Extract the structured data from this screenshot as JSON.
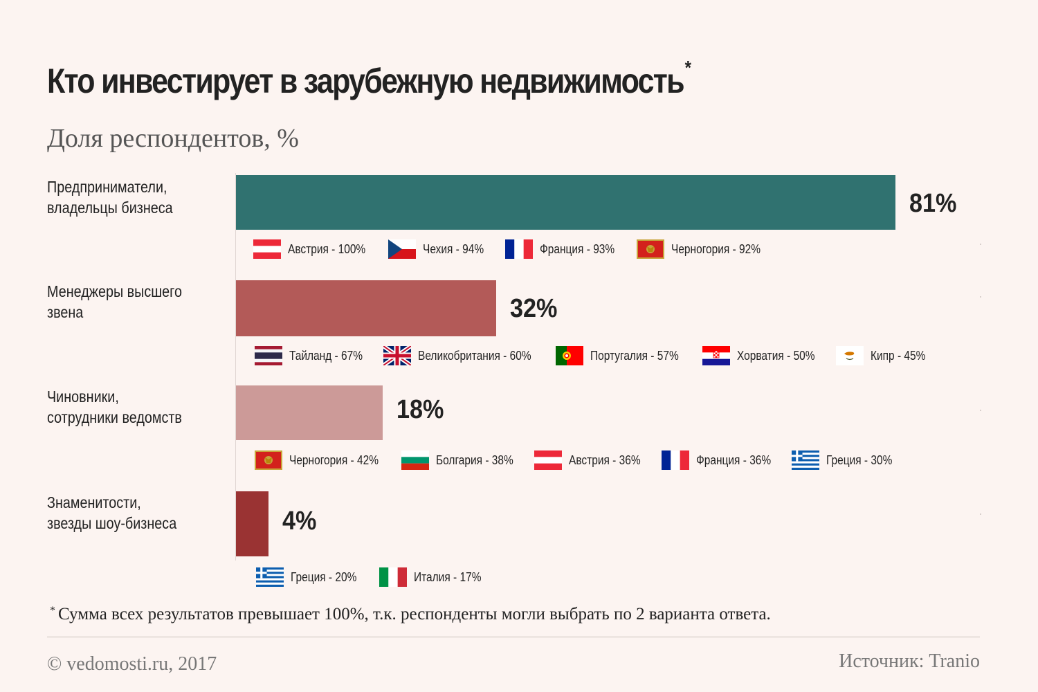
{
  "header": {
    "title": "Кто инвестирует в зарубежную недвижимость",
    "title_asterisk": "*",
    "subtitle": "Доля респондентов, %"
  },
  "chart_data": {
    "type": "bar",
    "orientation": "horizontal",
    "title": "Кто инвестирует в зарубежную недвижимость",
    "subtitle": "Доля респондентов, %",
    "xlim": [
      0,
      100
    ],
    "categories": [
      "Предприниматели, владельцы бизнеса",
      "Менеджеры высшего звена",
      "Чиновники, сотрудники ведомств",
      "Знаменитости, звезды шоу-бизнеса"
    ],
    "values": [
      81,
      32,
      18,
      4
    ],
    "value_labels": [
      "81%",
      "32%",
      "18%",
      "4%"
    ],
    "bar_colors": [
      "#307270",
      "#b35a58",
      "#cc9a98",
      "#9a3333"
    ],
    "country_breakdown": [
      [
        {
          "country": "Австрия",
          "value": 100,
          "label": "Австрия - 100%",
          "flag": "austria-flag-icon"
        },
        {
          "country": "Чехия",
          "value": 94,
          "label": "Чехия - 94%",
          "flag": "czech-flag-icon"
        },
        {
          "country": "Франция",
          "value": 93,
          "label": "Франция - 93%",
          "flag": "france-flag-icon"
        },
        {
          "country": "Черногория",
          "value": 92,
          "label": "Черногория - 92%",
          "flag": "montenegro-flag-icon"
        }
      ],
      [
        {
          "country": "Тайланд",
          "value": 67,
          "label": "Тайланд - 67%",
          "flag": "thailand-flag-icon"
        },
        {
          "country": "Великобритания",
          "value": 60,
          "label": "Великобритания - 60%",
          "flag": "uk-flag-icon"
        },
        {
          "country": "Португалия",
          "value": 57,
          "label": "Португалия - 57%",
          "flag": "portugal-flag-icon"
        },
        {
          "country": "Хорватия",
          "value": 50,
          "label": "Хорватия - 50%",
          "flag": "croatia-flag-icon"
        },
        {
          "country": "Кипр",
          "value": 45,
          "label": "Кипр - 45%",
          "flag": "cyprus-flag-icon"
        }
      ],
      [
        {
          "country": "Черногория",
          "value": 42,
          "label": "Черногория - 42%",
          "flag": "montenegro-flag-icon"
        },
        {
          "country": "Болгария",
          "value": 38,
          "label": "Болгария - 38%",
          "flag": "bulgaria-flag-icon"
        },
        {
          "country": "Австрия",
          "value": 36,
          "label": "Австрия - 36%",
          "flag": "austria-flag-icon"
        },
        {
          "country": "Франция",
          "value": 36,
          "label": "Франция - 36%",
          "flag": "france-flag-icon"
        },
        {
          "country": "Греция",
          "value": 30,
          "label": "Греция - 30%",
          "flag": "greece-flag-icon"
        }
      ],
      [
        {
          "country": "Греция",
          "value": 20,
          "label": "Греция - 20%",
          "flag": "greece-flag-icon"
        },
        {
          "country": "Италия",
          "value": 17,
          "label": "Италия - 17%",
          "flag": "italy-flag-icon"
        }
      ]
    ]
  },
  "category_lines": [
    [
      "Предприниматели,",
      "владельцы бизнеса"
    ],
    [
      "Менеджеры высшего",
      "звена"
    ],
    [
      "Чиновники,",
      "сотрудники ведомств"
    ],
    [
      "Знаменитости,",
      "звезды шоу-бизнеса"
    ]
  ],
  "footer": {
    "footnote_asterisk": "*",
    "footnote": "Сумма всех результатов превышает 100%, т.к. респонденты могли выбрать по 2 варианта ответа.",
    "copyright": "© vedomosti.ru, 2017",
    "source": "Источник: Tranio"
  }
}
